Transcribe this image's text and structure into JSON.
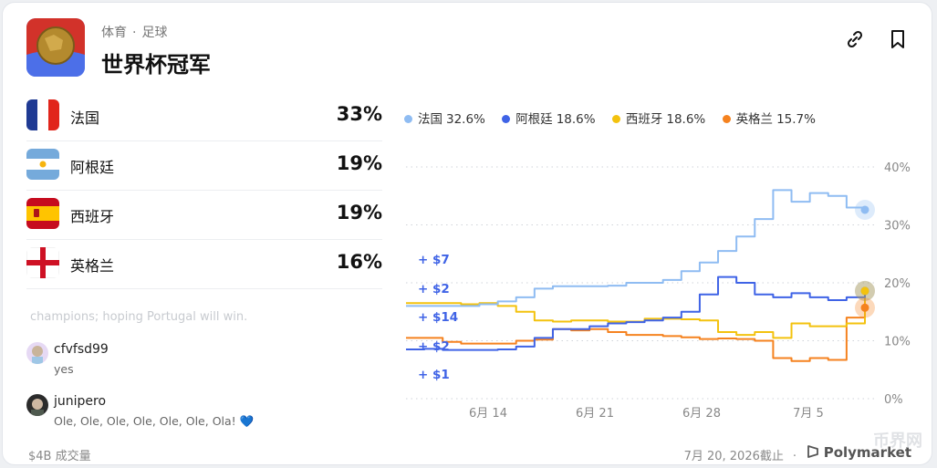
{
  "header": {
    "category": "体育",
    "subcategory": "足球",
    "title": "世界杯冠军",
    "link_icon": "link-icon",
    "bookmark_icon": "bookmark-icon"
  },
  "outcomes": [
    {
      "name": "法国",
      "pct": "33%",
      "flag": "france-flag"
    },
    {
      "name": "阿根廷",
      "pct": "19%",
      "flag": "argentina-flag"
    },
    {
      "name": "西班牙",
      "pct": "19%",
      "flag": "spain-flag"
    },
    {
      "name": "英格兰",
      "pct": "16%",
      "flag": "england-flag"
    }
  ],
  "comments": {
    "faded": "champions; hoping Portugal will win.",
    "items": [
      {
        "user": "cfvfsd99",
        "text": "yes"
      },
      {
        "user": "junipero",
        "text": "Ole, Ole, Ole, Ole, Ole, Ole, Ola! 💙"
      }
    ]
  },
  "footer": {
    "volume": "$4B 成交量",
    "end_date": "7月 20, 2026截止",
    "brand": "Polymarket",
    "watermark": "币界网"
  },
  "colors": {
    "france": "#8fbcf2",
    "argentina": "#3f63e6",
    "spain": "#f3c20e",
    "england": "#f5821f",
    "trade_label": "#3f63e6"
  },
  "trades": [
    "+ $7",
    "+ $2",
    "+ $14",
    "+ $2",
    "+ $1"
  ],
  "chart_data": {
    "type": "line",
    "x_ticks": [
      "6月 14",
      "6月 21",
      "6月 28",
      "7月 5"
    ],
    "y_ticks": [
      "40%",
      "30%",
      "20%",
      "10%",
      "0%"
    ],
    "ylim": [
      0,
      40
    ],
    "grid": true,
    "legend_position": "top",
    "x": [
      0,
      4,
      8,
      12,
      16,
      20,
      24,
      28,
      32,
      36,
      40,
      44,
      48,
      52,
      56,
      60,
      64,
      68,
      72,
      76,
      80,
      84,
      88,
      92,
      96,
      100
    ],
    "series": [
      {
        "name": "法国",
        "label": "32.6%",
        "color": "#8fbcf2",
        "values": [
          16,
          16,
          16,
          16,
          16.3,
          16.8,
          17.5,
          19,
          19.4,
          19.4,
          19.4,
          19.5,
          20,
          20,
          20.5,
          22,
          23.5,
          25.5,
          28,
          31,
          36,
          34,
          35.5,
          35,
          33,
          32.6
        ]
      },
      {
        "name": "阿根廷",
        "label": "18.6%",
        "color": "#3f63e6",
        "values": [
          8.5,
          8.6,
          8.4,
          8.4,
          8.4,
          8.5,
          9,
          10.5,
          12,
          12,
          12.5,
          13,
          13.2,
          13.5,
          14,
          15,
          18,
          21,
          20,
          18,
          17.5,
          18.2,
          17.5,
          17,
          17.5,
          18.6
        ]
      },
      {
        "name": "西班牙",
        "label": "18.6%",
        "color": "#f3c20e",
        "values": [
          16.5,
          16.5,
          16.5,
          16.3,
          16.5,
          16,
          15,
          13.5,
          13.3,
          13.5,
          13.5,
          13.3,
          13.3,
          13.8,
          13.8,
          13.7,
          13.5,
          11.5,
          11,
          11.5,
          10.5,
          13,
          12.5,
          12.5,
          13,
          18.6
        ]
      },
      {
        "name": "英格兰",
        "label": "15.7%",
        "color": "#f5821f",
        "values": [
          10.5,
          10.5,
          9.8,
          9.5,
          9.5,
          9.5,
          10,
          10.2,
          12,
          11.8,
          12,
          11.5,
          11,
          11,
          10.8,
          10.6,
          10.3,
          10.4,
          10.3,
          10,
          7,
          6.5,
          7,
          6.7,
          14,
          15.7
        ]
      }
    ]
  }
}
